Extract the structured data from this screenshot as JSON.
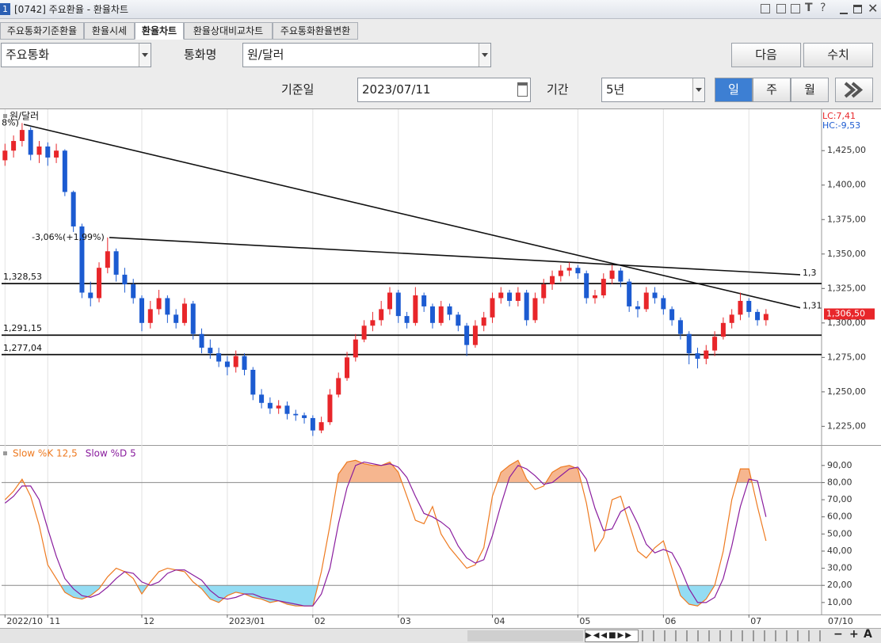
{
  "window": {
    "icon": "1",
    "title": "[0742] 주요환율 - 환율차트",
    "icons": [
      "T",
      "?"
    ]
  },
  "tabs": [
    "주요통화기준환율",
    "환율시세",
    "환율차트",
    "환율상대비교차트",
    "주요통화환율변환"
  ],
  "active_tab": 2,
  "controls": {
    "group": "주요통화",
    "currency_label": "통화명",
    "currency": "원/달러",
    "next": "다음",
    "values": "수치",
    "date_label": "기준일",
    "date": "2023/07/11",
    "period_label": "기간",
    "period": "5년",
    "intervals": [
      "일",
      "주",
      "월"
    ],
    "active_interval": 0
  },
  "zoom": [
    "−",
    "+",
    "A"
  ],
  "chart_data": [
    {
      "type": "candlestick",
      "legend": "원/달러",
      "open": [
        1418,
        1425,
        1432,
        1440,
        1422,
        1428,
        1420,
        1425,
        1395,
        1370,
        1322,
        1318,
        1340,
        1352,
        1335,
        1328,
        1318,
        1300,
        1310,
        1318,
        1306,
        1300,
        1314,
        1292,
        1282,
        1278,
        1272,
        1268,
        1276,
        1266,
        1248,
        1242,
        1238,
        1240,
        1234,
        1233,
        1231,
        1222,
        1228,
        1248,
        1260,
        1275,
        1288,
        1298,
        1302,
        1310,
        1322,
        1305,
        1300,
        1320,
        1312,
        1300,
        1312,
        1306,
        1298,
        1284,
        1298,
        1304,
        1318,
        1322,
        1316,
        1322,
        1302,
        1318,
        1328,
        1334,
        1338,
        1340,
        1336,
        1318,
        1320,
        1332,
        1338,
        1330,
        1312,
        1310,
        1322,
        1318,
        1310,
        1302,
        1292,
        1278,
        1274,
        1280,
        1290,
        1300,
        1306,
        1316,
        1308,
        1302
      ],
      "high": [
        1430,
        1436,
        1445,
        1442,
        1432,
        1431,
        1430,
        1426,
        1396,
        1372,
        1330,
        1344,
        1362,
        1354,
        1340,
        1332,
        1320,
        1316,
        1324,
        1320,
        1310,
        1318,
        1316,
        1296,
        1288,
        1282,
        1276,
        1280,
        1278,
        1268,
        1252,
        1246,
        1244,
        1243,
        1237,
        1235,
        1233,
        1232,
        1252,
        1264,
        1279,
        1292,
        1302,
        1308,
        1316,
        1326,
        1324,
        1308,
        1326,
        1322,
        1314,
        1316,
        1314,
        1308,
        1300,
        1302,
        1308,
        1322,
        1326,
        1324,
        1326,
        1324,
        1322,
        1332,
        1338,
        1342,
        1344,
        1342,
        1338,
        1324,
        1336,
        1342,
        1340,
        1332,
        1316,
        1326,
        1326,
        1320,
        1312,
        1304,
        1294,
        1282,
        1284,
        1294,
        1304,
        1310,
        1322,
        1318,
        1310,
        1310
      ],
      "low": [
        1414,
        1420,
        1428,
        1418,
        1416,
        1414,
        1416,
        1392,
        1366,
        1318,
        1312,
        1315,
        1336,
        1330,
        1322,
        1314,
        1294,
        1296,
        1306,
        1300,
        1296,
        1298,
        1288,
        1278,
        1274,
        1268,
        1262,
        1264,
        1262,
        1244,
        1238,
        1234,
        1234,
        1230,
        1229,
        1227,
        1218,
        1220,
        1226,
        1246,
        1258,
        1272,
        1286,
        1294,
        1298,
        1306,
        1300,
        1296,
        1298,
        1308,
        1296,
        1298,
        1302,
        1294,
        1276,
        1282,
        1294,
        1300,
        1314,
        1312,
        1312,
        1298,
        1300,
        1314,
        1324,
        1330,
        1334,
        1332,
        1314,
        1314,
        1318,
        1328,
        1326,
        1308,
        1304,
        1308,
        1314,
        1306,
        1298,
        1288,
        1270,
        1267,
        1270,
        1276,
        1288,
        1296,
        1302,
        1304,
        1298,
        1298
      ],
      "close": [
        1425,
        1432,
        1440,
        1422,
        1428,
        1420,
        1425,
        1395,
        1370,
        1322,
        1318,
        1340,
        1352,
        1335,
        1328,
        1318,
        1300,
        1310,
        1318,
        1306,
        1300,
        1314,
        1292,
        1282,
        1278,
        1272,
        1268,
        1276,
        1266,
        1248,
        1242,
        1238,
        1240,
        1234,
        1233,
        1231,
        1222,
        1228,
        1248,
        1260,
        1275,
        1288,
        1298,
        1302,
        1310,
        1322,
        1305,
        1300,
        1320,
        1312,
        1300,
        1312,
        1306,
        1298,
        1284,
        1298,
        1304,
        1318,
        1322,
        1316,
        1322,
        1302,
        1318,
        1328,
        1334,
        1338,
        1340,
        1336,
        1318,
        1320,
        1332,
        1338,
        1330,
        1312,
        1310,
        1322,
        1318,
        1310,
        1302,
        1292,
        1278,
        1274,
        1280,
        1290,
        1300,
        1306,
        1316,
        1308,
        1302,
        1306.5
      ],
      "up_color": "#e8262a",
      "down_color": "#1c5bd1",
      "xlim": [
        -0.4,
        95.5
      ],
      "xticks": [
        {
          "value": 0,
          "label": "2022/10"
        },
        {
          "value": 5,
          "label": "11"
        },
        {
          "value": 16,
          "label": "12"
        },
        {
          "value": 26,
          "label": "2023/01"
        },
        {
          "value": 36,
          "label": "02"
        },
        {
          "value": 46,
          "label": "03"
        },
        {
          "value": 57,
          "label": "04"
        },
        {
          "value": 67,
          "label": "05"
        },
        {
          "value": 77,
          "label": "06"
        },
        {
          "value": 87,
          "label": "07"
        }
      ],
      "ylim": [
        1212,
        1455
      ],
      "yticks": [
        {
          "value": 1225,
          "label": "1,225,00"
        },
        {
          "value": 1250,
          "label": "1,250,00"
        },
        {
          "value": 1275,
          "label": "1,275,00"
        },
        {
          "value": 1300,
          "label": "1,300,00"
        },
        {
          "value": 1325,
          "label": "1,325,00"
        },
        {
          "value": 1350,
          "label": "1,350,00"
        },
        {
          "value": 1375,
          "label": "1,375,00"
        },
        {
          "value": 1400,
          "label": "1,400,00"
        },
        {
          "value": 1425,
          "label": "1,425,00"
        }
      ],
      "grid": "x",
      "hlines": [
        {
          "value": 1328.53,
          "label": "1,328,53"
        },
        {
          "value": 1291.15,
          "label": "1,291,15"
        },
        {
          "value": 1277.04,
          "label": "1,277,04"
        }
      ],
      "trendlines": [
        {
          "x": [
            2.2,
            93
          ],
          "y": [
            1444,
            1311
          ],
          "label": "1,31"
        },
        {
          "x": [
            12.2,
            93
          ],
          "y": [
            1362,
            1335
          ],
          "label": "1,3"
        }
      ],
      "annotations": [
        {
          "index": 2,
          "text": "8%)"
        },
        {
          "index": 12,
          "text": "-3,06%(+1,99%)"
        }
      ],
      "last": {
        "value": 1306.5,
        "label": "1,306,50"
      },
      "lc": "LC:7,41",
      "hc": "HC:-9,53",
      "right_label": "07/10"
    },
    {
      "type": "line",
      "series": [
        {
          "name": "Slow %K 12,5",
          "color": "#ee7a20",
          "values": [
            70,
            75,
            82,
            72,
            55,
            32,
            24,
            16,
            13,
            12,
            14,
            18,
            25,
            30,
            28,
            24,
            15,
            22,
            28,
            30,
            29,
            28,
            22,
            18,
            12,
            10,
            14,
            16,
            15,
            13,
            12,
            10,
            11,
            9,
            8,
            8,
            8,
            28,
            55,
            85,
            92,
            93,
            91,
            90,
            90,
            92,
            86,
            72,
            58,
            56,
            66,
            50,
            42,
            36,
            30,
            32,
            42,
            72,
            86,
            90,
            93,
            82,
            76,
            78,
            86,
            89,
            90,
            88,
            68,
            40,
            48,
            70,
            72,
            56,
            40,
            36,
            42,
            46,
            30,
            14,
            9,
            8,
            12,
            20,
            40,
            70,
            88,
            88,
            66,
            46
          ]
        },
        {
          "name": "Slow %D 5",
          "color": "#8a1d9e",
          "values": [
            68,
            72,
            78,
            78,
            70,
            53,
            37,
            24,
            18,
            14,
            13,
            15,
            19,
            24,
            28,
            27,
            22,
            20,
            22,
            27,
            29,
            29,
            26,
            23,
            17,
            13,
            12,
            13,
            15,
            15,
            13,
            12,
            11,
            10,
            9,
            8,
            8,
            15,
            30,
            56,
            77,
            90,
            92,
            91,
            90,
            91,
            89,
            83,
            72,
            62,
            60,
            57,
            53,
            43,
            36,
            33,
            35,
            49,
            67,
            83,
            90,
            88,
            84,
            79,
            80,
            84,
            88,
            89,
            82,
            65,
            52,
            53,
            63,
            66,
            56,
            44,
            39,
            41,
            39,
            30,
            18,
            10,
            10,
            13,
            24,
            43,
            66,
            82,
            81,
            60
          ]
        }
      ],
      "ylim": [
        3,
        101
      ],
      "yticks": [
        {
          "value": 10,
          "label": "10,00"
        },
        {
          "value": 20,
          "label": "20,00"
        },
        {
          "value": 30,
          "label": "30,00"
        },
        {
          "value": 40,
          "label": "40,00"
        },
        {
          "value": 50,
          "label": "50,00"
        },
        {
          "value": 60,
          "label": "60,00"
        },
        {
          "value": 70,
          "label": "70,00"
        },
        {
          "value": 80,
          "label": "80,00"
        },
        {
          "value": 90,
          "label": "90,00"
        }
      ],
      "levels": [
        80,
        20
      ],
      "fill_above": "#f6b68f",
      "fill_below": "#93dcf3"
    }
  ]
}
